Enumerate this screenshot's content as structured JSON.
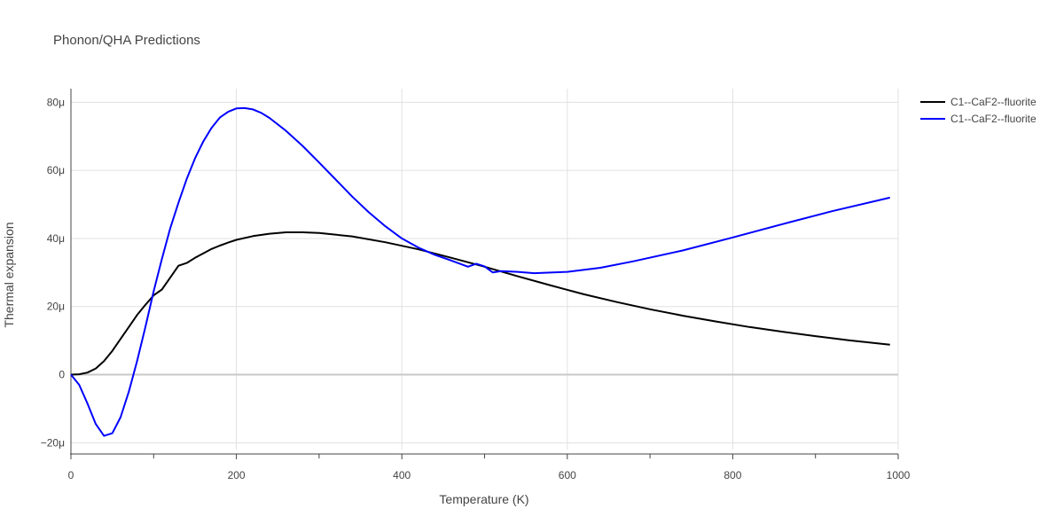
{
  "chart_data": {
    "type": "line",
    "title": "Phonon/QHA Predictions",
    "xlabel": "Temperature (K)",
    "ylabel": "Thermal expansion",
    "xlim": [
      0,
      1000
    ],
    "ylim": [
      -22,
      84
    ],
    "x_ticks": [
      0,
      200,
      400,
      600,
      800,
      1000
    ],
    "x_tick_labels": [
      "0",
      "200",
      "400",
      "600",
      "800",
      "1000"
    ],
    "y_ticks": [
      -20,
      0,
      20,
      40,
      60,
      80
    ],
    "y_tick_labels": [
      "−20μ",
      "0",
      "20μ",
      "40μ",
      "60μ",
      "80μ"
    ],
    "grid": true,
    "legend": "top-right",
    "series": [
      {
        "name": "C1--CaF2--fluorite",
        "color": "#000000",
        "x": [
          0,
          10,
          20,
          30,
          40,
          50,
          60,
          70,
          80,
          90,
          100,
          110,
          120,
          130,
          140,
          150,
          160,
          170,
          180,
          190,
          200,
          220,
          240,
          260,
          280,
          300,
          340,
          380,
          420,
          460,
          500,
          540,
          580,
          620,
          660,
          700,
          740,
          780,
          820,
          860,
          900,
          940,
          990
        ],
        "y": [
          0,
          0.1,
          0.6,
          1.8,
          4,
          7,
          10.5,
          14,
          17.5,
          20.5,
          23.3,
          25,
          28.5,
          32,
          32.8,
          34.3,
          35.6,
          36.9,
          37.9,
          38.8,
          39.6,
          40.7,
          41.4,
          41.8,
          41.8,
          41.6,
          40.6,
          38.9,
          36.8,
          34.3,
          31.7,
          28.9,
          26.2,
          23.6,
          21.3,
          19.2,
          17.3,
          15.6,
          14,
          12.6,
          11.3,
          10.1,
          8.8
        ]
      },
      {
        "name": "C1--CaF2--fluorite",
        "color": "#0000ff",
        "x": [
          0,
          10,
          20,
          30,
          40,
          50,
          60,
          70,
          80,
          90,
          100,
          110,
          120,
          130,
          140,
          150,
          160,
          170,
          180,
          190,
          200,
          210,
          220,
          230,
          240,
          260,
          280,
          300,
          320,
          340,
          360,
          380,
          400,
          420,
          440,
          460,
          480,
          490,
          500,
          510,
          520,
          540,
          560,
          600,
          640,
          680,
          740,
          800,
          860,
          920,
          990
        ],
        "y": [
          0,
          -3,
          -8.5,
          -14.5,
          -18,
          -17.2,
          -12.5,
          -5,
          4,
          14,
          24.5,
          34,
          43,
          50.5,
          57.5,
          63.5,
          68.5,
          72.5,
          75.5,
          77.2,
          78.2,
          78.3,
          77.9,
          76.9,
          75.4,
          71.6,
          67.2,
          62.3,
          57.3,
          52.3,
          47.7,
          43.6,
          40,
          37.3,
          35.2,
          33.5,
          31.7,
          32.6,
          31.8,
          30,
          30.4,
          30.2,
          29.8,
          30.2,
          31.4,
          33.3,
          36.5,
          40.3,
          44.2,
          48,
          52
        ]
      }
    ]
  }
}
